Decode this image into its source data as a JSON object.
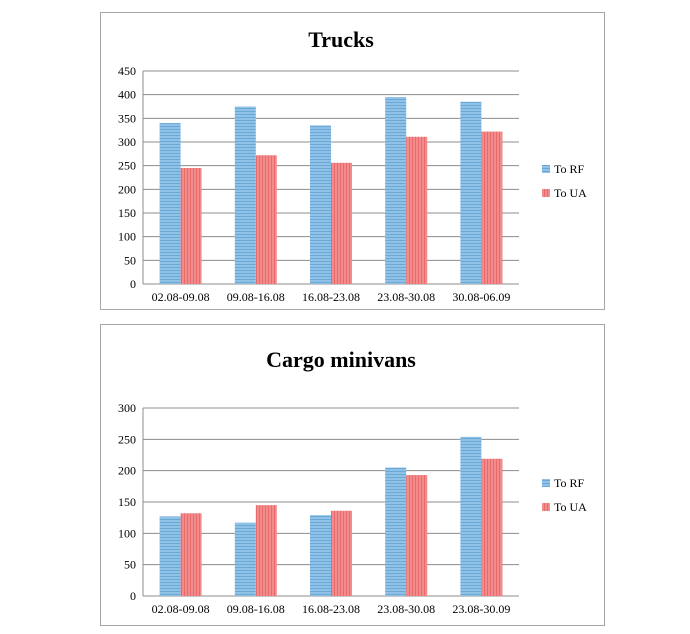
{
  "chart_data": [
    {
      "type": "bar",
      "title": "Trucks",
      "categories": [
        "02.08-09.08",
        "09.08-16.08",
        "16.08-23.08",
        "23.08-30.08",
        "30.08-06.09"
      ],
      "series": [
        {
          "name": "To RF",
          "values": [
            340,
            375,
            335,
            395,
            385
          ]
        },
        {
          "name": "To UA",
          "values": [
            245,
            272,
            256,
            311,
            322
          ]
        }
      ],
      "ylim": [
        0,
        450
      ],
      "yticks": [
        0,
        50,
        100,
        150,
        200,
        250,
        300,
        350,
        400,
        450
      ],
      "grid": true,
      "legend": "right",
      "colors": {
        "To RF": "#8fc2e6",
        "To UA": "#f28b8b"
      }
    },
    {
      "type": "bar",
      "title": "Cargo minivans",
      "categories": [
        "02.08-09.08",
        "09.08-16.08",
        "16.08-23.08",
        "23.08-30.08",
        "23.08-30.09"
      ],
      "series": [
        {
          "name": "To RF",
          "values": [
            127,
            117,
            129,
            205,
            254
          ]
        },
        {
          "name": "To UA",
          "values": [
            132,
            145,
            136,
            193,
            219
          ]
        }
      ],
      "ylim": [
        0,
        300
      ],
      "yticks": [
        0,
        50,
        100,
        150,
        200,
        250,
        300
      ],
      "grid": true,
      "legend": "right",
      "colors": {
        "To RF": "#8fc2e6",
        "To UA": "#f28b8b"
      }
    }
  ]
}
